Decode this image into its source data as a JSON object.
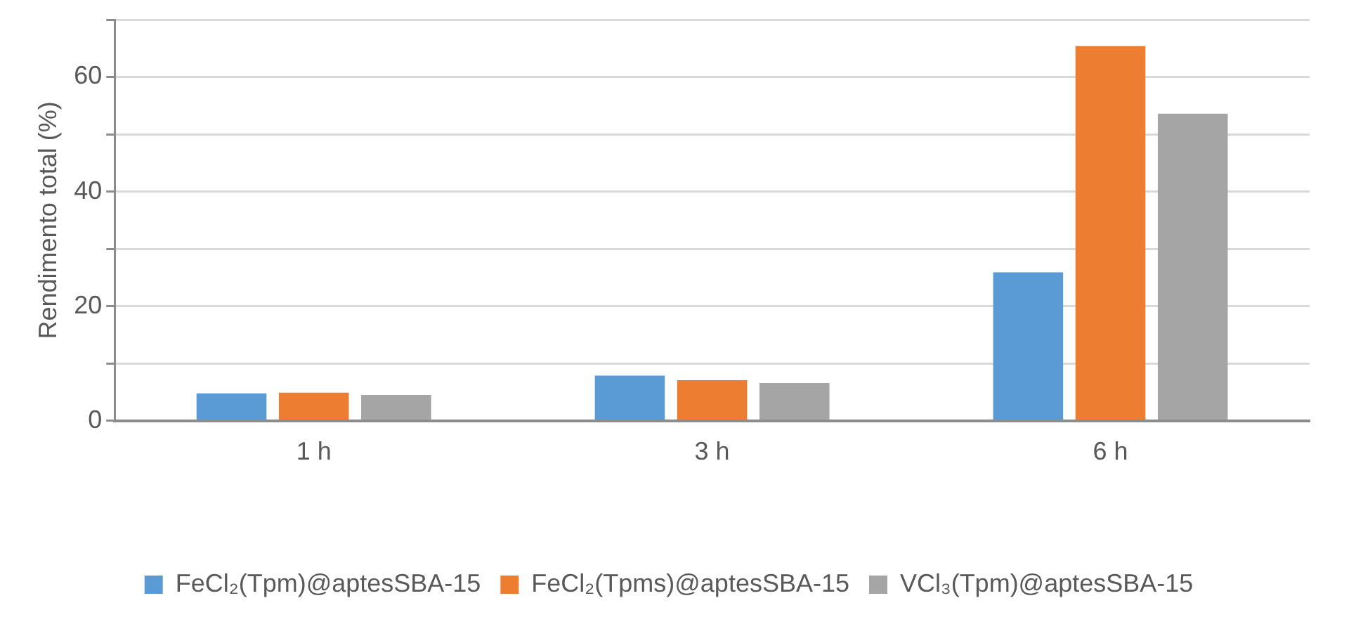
{
  "chart_data": {
    "type": "bar",
    "ylabel": "Rendimento total (%)",
    "categories": [
      "1 h",
      "3 h",
      "6 h"
    ],
    "series": [
      {
        "name": "FeCl₂(Tpm)@aptesSBA-15",
        "color": "#5b9bd5",
        "values": [
          4.8,
          7.9,
          25.9
        ]
      },
      {
        "name": "FeCl₂(Tpms)@aptesSBA-15",
        "color": "#ed7d31",
        "values": [
          4.9,
          7.1,
          65.4
        ]
      },
      {
        "name": "VCl₃(Tpm)@aptesSBA-15",
        "color": "#a5a5a5",
        "values": [
          4.5,
          6.6,
          53.6
        ]
      }
    ],
    "ylim": [
      0,
      70
    ],
    "yticks": [
      0,
      {
        "value": 10,
        "label": null
      },
      20,
      {
        "value": 30,
        "label": null
      },
      40,
      {
        "value": 50,
        "label": null
      },
      60,
      {
        "value": 70,
        "label": null
      }
    ],
    "grid": "y",
    "legend": "bottom"
  }
}
